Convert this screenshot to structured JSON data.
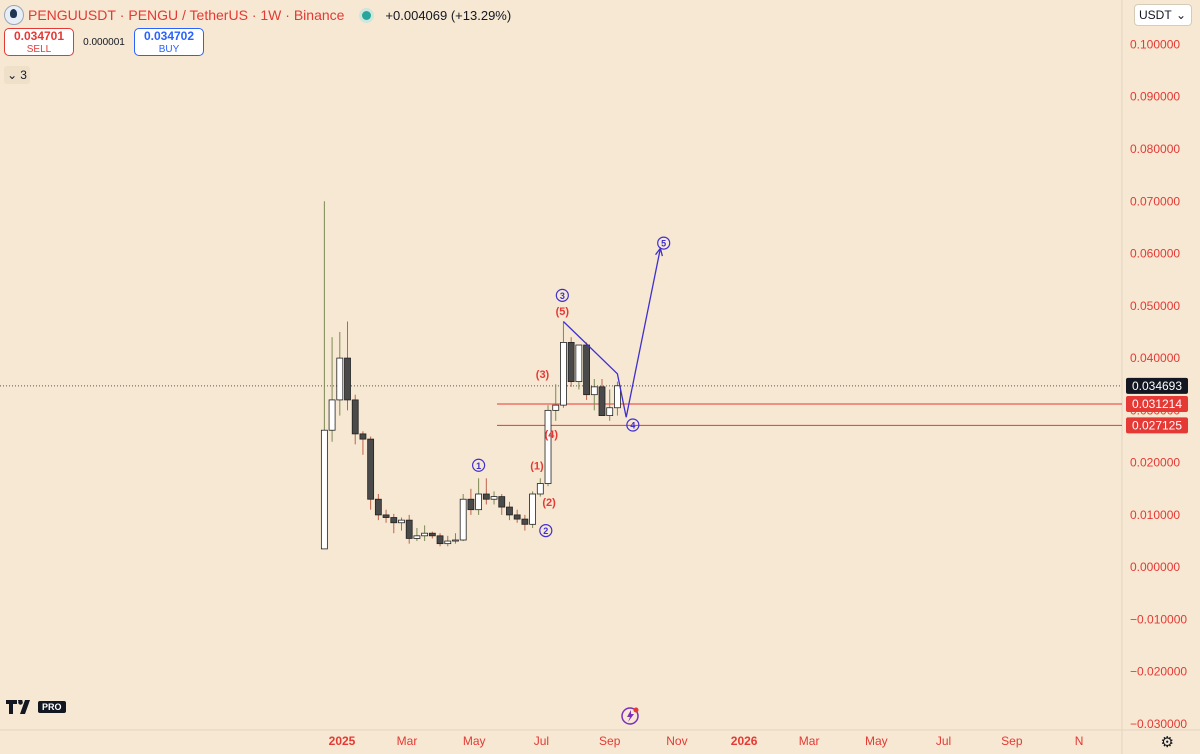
{
  "header": {
    "symbol": "PENGUUSDT",
    "sep1": "·",
    "name": "PENGU / TetherUS",
    "sep2": "·",
    "interval": "1W",
    "sep3": "·",
    "exchange": "Binance",
    "change": "+0.004069 (+13.29%)"
  },
  "trade": {
    "sell_price": "0.034701",
    "sell_label": "SELL",
    "spread": "0.000001",
    "buy_price": "0.034702",
    "buy_label": "BUY"
  },
  "indicator_count": "3",
  "currency": "USDT",
  "brand": {
    "pro_label": "PRO"
  },
  "colors": {
    "background": "#f6e8d2",
    "bull_body": "#ffffff",
    "bear_body": "#4a4a4a",
    "wave": "#3f2fd0",
    "sub_wave": "#e53935",
    "axis_text": "#e53935"
  },
  "chart_data": {
    "type": "candlestick",
    "x_ticks": [
      "2025",
      "Mar",
      "May",
      "Jul",
      "Sep",
      "Nov",
      "2026",
      "Mar",
      "May",
      "Jul",
      "Sep",
      "N"
    ],
    "y_ticks": [
      "0.100000",
      "0.090000",
      "0.080000",
      "0.070000",
      "0.060000",
      "0.050000",
      "0.040000",
      "0.030000",
      "0.020000",
      "0.010000",
      "0.000000",
      "−0.010000",
      "−0.020000",
      "−0.030000"
    ],
    "ylim": [
      -0.03,
      0.102
    ],
    "start_date": "2024-12-16",
    "candles": [
      [
        0.0035,
        0.07,
        0.0035,
        0.0262
      ],
      [
        0.0262,
        0.044,
        0.024,
        0.032
      ],
      [
        0.032,
        0.045,
        0.029,
        0.04
      ],
      [
        0.04,
        0.047,
        0.03,
        0.032
      ],
      [
        0.032,
        0.033,
        0.0235,
        0.0255
      ],
      [
        0.0255,
        0.026,
        0.0215,
        0.0245
      ],
      [
        0.0245,
        0.025,
        0.011,
        0.013
      ],
      [
        0.013,
        0.014,
        0.009,
        0.01
      ],
      [
        0.01,
        0.011,
        0.0085,
        0.0095
      ],
      [
        0.0095,
        0.0102,
        0.0065,
        0.0085
      ],
      [
        0.0085,
        0.0095,
        0.007,
        0.009
      ],
      [
        0.009,
        0.01,
        0.0045,
        0.0055
      ],
      [
        0.0055,
        0.0075,
        0.005,
        0.006
      ],
      [
        0.006,
        0.008,
        0.005,
        0.0065
      ],
      [
        0.0065,
        0.0068,
        0.0055,
        0.006
      ],
      [
        0.006,
        0.0065,
        0.004,
        0.0045
      ],
      [
        0.0045,
        0.006,
        0.004,
        0.005
      ],
      [
        0.005,
        0.0065,
        0.0045,
        0.0052
      ],
      [
        0.0052,
        0.014,
        0.005,
        0.013
      ],
      [
        0.013,
        0.015,
        0.01,
        0.011
      ],
      [
        0.011,
        0.017,
        0.01,
        0.014
      ],
      [
        0.014,
        0.017,
        0.012,
        0.013
      ],
      [
        0.013,
        0.0145,
        0.012,
        0.0135
      ],
      [
        0.0135,
        0.014,
        0.01,
        0.0115
      ],
      [
        0.0115,
        0.0125,
        0.009,
        0.01
      ],
      [
        0.01,
        0.011,
        0.0085,
        0.0092
      ],
      [
        0.0092,
        0.01,
        0.007,
        0.0082
      ],
      [
        0.0082,
        0.0145,
        0.0075,
        0.014
      ],
      [
        0.014,
        0.017,
        0.0135,
        0.016
      ],
      [
        0.016,
        0.031,
        0.0155,
        0.03
      ],
      [
        0.03,
        0.035,
        0.028,
        0.031
      ],
      [
        0.031,
        0.047,
        0.0305,
        0.043
      ],
      [
        0.043,
        0.044,
        0.0345,
        0.0355
      ],
      [
        0.0355,
        0.0425,
        0.034,
        0.0425
      ],
      [
        0.0425,
        0.043,
        0.032,
        0.033
      ],
      [
        0.033,
        0.036,
        0.03,
        0.0345
      ],
      [
        0.0345,
        0.036,
        0.029,
        0.029
      ],
      [
        0.029,
        0.034,
        0.028,
        0.0305
      ],
      [
        0.0305,
        0.0355,
        0.029,
        0.0347
      ]
    ],
    "price_lines": [
      {
        "price": 0.031214,
        "label": "0.031214"
      },
      {
        "price": 0.027125,
        "label": "0.027125"
      }
    ],
    "current_price": {
      "price": 0.034693,
      "label": "0.034693"
    },
    "wave_main": [
      {
        "label": "1",
        "date": "2025-05-05",
        "price": 0.0195
      },
      {
        "label": "2",
        "date": "2025-07-05",
        "price": 0.007
      },
      {
        "label": "3",
        "date": "2025-07-20",
        "price": 0.052
      },
      {
        "label": "4",
        "date": "2025-09-22",
        "price": 0.0272
      },
      {
        "label": "5",
        "date": "2025-10-20",
        "price": 0.062
      }
    ],
    "wave_sub": [
      {
        "label": "(1)",
        "date": "2025-06-27",
        "price": 0.0195
      },
      {
        "label": "(2)",
        "date": "2025-07-08",
        "price": 0.0125
      },
      {
        "label": "(3)",
        "date": "2025-07-02",
        "price": 0.037
      },
      {
        "label": "(4)",
        "date": "2025-07-10",
        "price": 0.0255
      },
      {
        "label": "(5)",
        "date": "2025-07-20",
        "price": 0.049
      }
    ],
    "projection": [
      {
        "date": "2025-07-21",
        "price": 0.047
      },
      {
        "date": "2025-09-08",
        "price": 0.037
      },
      {
        "date": "2025-09-16",
        "price": 0.0287
      },
      {
        "date": "2025-10-17",
        "price": 0.061
      }
    ]
  }
}
